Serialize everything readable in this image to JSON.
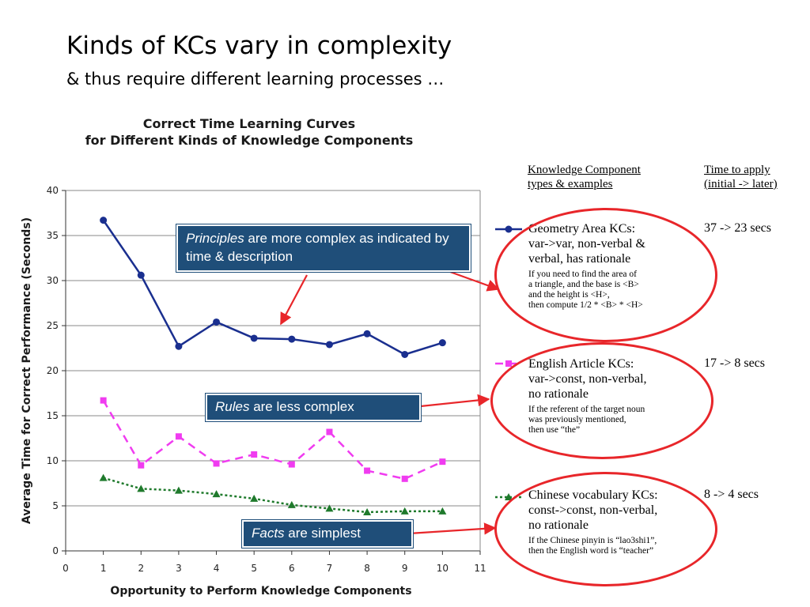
{
  "slide": {
    "title": "Kinds of KCs vary in complexity",
    "subtitle": "& thus require different learning processes …"
  },
  "chart_data": {
    "type": "line",
    "title": "Correct Time Learning Curves",
    "subtitle": "for Different Kinds of Knowledge Components",
    "xlabel": "Opportunity to Perform Knowledge Components",
    "ylabel": "Average Time for Correct Performance (Seconds)",
    "xlim": [
      0,
      11
    ],
    "ylim": [
      0,
      40
    ],
    "xticks": [
      0,
      1,
      2,
      3,
      4,
      5,
      6,
      7,
      8,
      9,
      10,
      11
    ],
    "yticks": [
      0,
      5,
      10,
      15,
      20,
      25,
      30,
      35,
      40
    ],
    "grid": "horizontal",
    "x": [
      1,
      2,
      3,
      4,
      5,
      6,
      7,
      8,
      9,
      10
    ],
    "series": [
      {
        "key": "geometry",
        "color": "#1a2f8f",
        "marker": "circle",
        "line": "solid",
        "values": [
          36.7,
          30.6,
          22.7,
          25.4,
          23.6,
          23.5,
          22.9,
          24.1,
          21.8,
          23.1
        ]
      },
      {
        "key": "english",
        "color": "#f03cf0",
        "marker": "square",
        "line": "dashed",
        "values": [
          16.7,
          9.5,
          12.7,
          9.7,
          10.7,
          9.6,
          13.2,
          8.9,
          8.0,
          9.9
        ]
      },
      {
        "key": "chinese",
        "color": "#1f7a2c",
        "marker": "triangle",
        "line": "dotted",
        "values": [
          8.1,
          6.9,
          6.7,
          6.3,
          5.8,
          5.1,
          4.7,
          4.3,
          4.4,
          4.4
        ]
      }
    ]
  },
  "callouts": {
    "principles": {
      "em": "Principles",
      "rest": " are more complex as indicated by time & description"
    },
    "rules": {
      "em": "Rules",
      "rest": " are less complex"
    },
    "facts": {
      "em": "Facts",
      "rest": " are simplest"
    }
  },
  "legend": {
    "col1_header_line1": "Knowledge Component",
    "col1_header_line2": "types  & examples",
    "col2_header_line1": "Time  to apply",
    "col2_header_line2": "(initial -> later)",
    "items": [
      {
        "type_line1": "Geometry Area KCs:",
        "type_line2": "var->var, non-verbal &",
        "type_line3": "verbal, has rationale",
        "ex_line1": "If you need to find the area of",
        "ex_line2": "a triangle, and the base is <B>",
        "ex_line3": "and the height is <H>,",
        "ex_line4": "then compute 1/2 * <B> * <H>",
        "time": "37 -> 23 secs"
      },
      {
        "type_line1": "English Article KCs:",
        "type_line2": "var->const, non-verbal,",
        "type_line3": "no rationale",
        "ex_line1": "If the referent of the target noun",
        "ex_line2": "was previously mentioned,",
        "ex_line3": "then use  “the”",
        "time": "17 -> 8 secs"
      },
      {
        "type_line1": "Chinese vocabulary KCs:",
        "type_line2": "const->const, non-verbal,",
        "type_line3": "no rationale",
        "ex_line1": "If the Chinese pinyin is  “lao3shi1”,",
        "ex_line2": "then the English word is  “teacher”",
        "time": "8 -> 4 secs"
      }
    ]
  },
  "colors": {
    "callout_bg": "#1f4e79",
    "annotation_red": "#e8262a"
  }
}
